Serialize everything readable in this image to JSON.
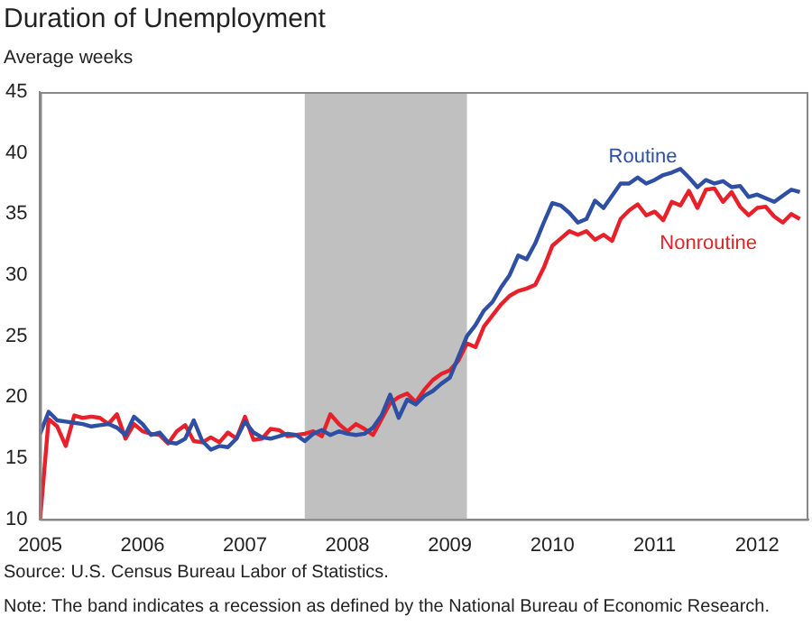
{
  "chart_data": {
    "type": "line",
    "title": "Duration of Unemployment",
    "ylabel": "Average weeks",
    "x": [
      "2005-01",
      "2005-02",
      "2005-03",
      "2005-04",
      "2005-05",
      "2005-06",
      "2005-07",
      "2005-08",
      "2005-09",
      "2005-10",
      "2005-11",
      "2005-12",
      "2006-01",
      "2006-02",
      "2006-03",
      "2006-04",
      "2006-05",
      "2006-06",
      "2006-07",
      "2006-08",
      "2006-09",
      "2006-10",
      "2006-11",
      "2006-12",
      "2007-01",
      "2007-02",
      "2007-03",
      "2007-04",
      "2007-05",
      "2007-06",
      "2007-07",
      "2007-08",
      "2007-09",
      "2007-10",
      "2007-11",
      "2007-12",
      "2008-01",
      "2008-02",
      "2008-03",
      "2008-04",
      "2008-05",
      "2008-06",
      "2008-07",
      "2008-08",
      "2008-09",
      "2008-10",
      "2008-11",
      "2008-12",
      "2009-01",
      "2009-02",
      "2009-03",
      "2009-04",
      "2009-05",
      "2009-06",
      "2009-07",
      "2009-08",
      "2009-09",
      "2009-10",
      "2009-11",
      "2009-12",
      "2010-01",
      "2010-02",
      "2010-03",
      "2010-04",
      "2010-05",
      "2010-06",
      "2010-07",
      "2010-08",
      "2010-09",
      "2010-10",
      "2010-11",
      "2010-12",
      "2011-01",
      "2011-02",
      "2011-03",
      "2011-04",
      "2011-05",
      "2011-06",
      "2011-07",
      "2011-08",
      "2011-09",
      "2011-10",
      "2011-11",
      "2011-12",
      "2012-01",
      "2012-02",
      "2012-03",
      "2012-04",
      "2012-05",
      "2012-06"
    ],
    "series": [
      {
        "name": "Routine",
        "color": "#2e4fa3",
        "values": [
          17.0,
          18.8,
          18.1,
          18.0,
          17.9,
          17.8,
          17.6,
          17.7,
          17.8,
          17.5,
          16.9,
          18.4,
          17.8,
          16.9,
          17.1,
          16.3,
          16.2,
          16.6,
          18.1,
          16.4,
          15.7,
          16.0,
          15.9,
          16.6,
          18.0,
          17.1,
          16.7,
          16.6,
          16.8,
          17.0,
          16.9,
          16.4,
          17.0,
          17.3,
          16.9,
          17.2,
          17.0,
          16.9,
          17.0,
          17.5,
          18.5,
          20.2,
          18.3,
          19.8,
          19.4,
          20.1,
          20.5,
          21.1,
          21.6,
          23.3,
          25.0,
          25.9,
          27.1,
          27.8,
          29.0,
          30.0,
          31.6,
          31.3,
          32.6,
          34.3,
          35.9,
          35.7,
          35.1,
          34.3,
          34.6,
          36.1,
          35.5,
          36.5,
          37.5,
          37.5,
          38.0,
          37.5,
          37.8,
          38.2,
          38.4,
          38.7,
          38.0,
          37.2,
          37.8,
          37.5,
          37.7,
          37.2,
          37.3,
          36.4,
          36.6,
          36.3,
          36.0,
          36.5,
          37.0,
          36.8
        ]
      },
      {
        "name": "Nonroutine",
        "color": "#e8202a",
        "values": [
          10,
          18.2,
          17.6,
          16.0,
          18.5,
          18.3,
          18.4,
          18.3,
          17.8,
          18.6,
          16.6,
          17.8,
          17.2,
          17.0,
          16.9,
          16.2,
          17.2,
          17.7,
          16.4,
          16.3,
          16.7,
          16.3,
          17.1,
          16.6,
          18.4,
          16.5,
          16.6,
          17.4,
          17.3,
          16.8,
          16.9,
          17.0,
          17.2,
          16.8,
          18.6,
          17.8,
          17.2,
          17.8,
          17.4,
          16.9,
          18.2,
          19.5,
          20.0,
          20.3,
          19.6,
          20.6,
          21.4,
          21.9,
          22.2,
          23.0,
          24.4,
          24.1,
          25.8,
          26.7,
          27.6,
          28.3,
          28.7,
          28.9,
          29.2,
          30.6,
          32.4,
          33.0,
          33.6,
          33.3,
          33.6,
          32.9,
          33.3,
          32.8,
          34.6,
          35.3,
          35.8,
          34.9,
          35.2,
          34.5,
          36.0,
          35.7,
          36.9,
          35.5,
          37.0,
          37.1,
          36.0,
          36.8,
          35.6,
          34.9,
          35.5,
          35.6,
          34.8,
          34.3,
          35.0,
          34.6
        ]
      }
    ],
    "xlim": [
      "2005-01",
      "2012-07"
    ],
    "xticks": [
      "2005",
      "2006",
      "2007",
      "2008",
      "2009",
      "2010",
      "2011",
      "2012"
    ],
    "ylim": [
      10,
      45
    ],
    "yticks": [
      10,
      15,
      20,
      25,
      30,
      35,
      40,
      45
    ],
    "bands": [
      {
        "axis": "x",
        "from": "2007-08",
        "to": "2009-03",
        "color": "#c0c0c0"
      }
    ],
    "legend": false,
    "marker": "none",
    "line_style": "solid",
    "annotations": [
      "Source: U.S. Census Bureau Labor of Statistics.",
      "Note: The band indicates a recession as defined by the National Bureau of Economic Research."
    ]
  }
}
